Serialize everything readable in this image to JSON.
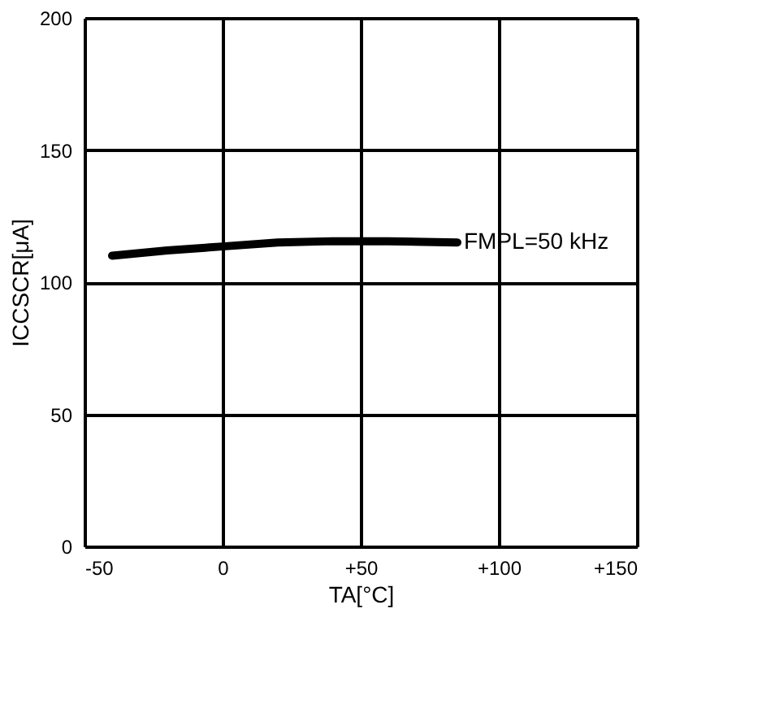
{
  "chart_data": {
    "type": "line",
    "xlabel": "TA[°C]",
    "ylabel": "ICCSCR[μA]",
    "x": [
      -40,
      -20,
      0,
      20,
      40,
      60,
      85
    ],
    "series": [
      {
        "color": "#000000",
        "values": [
          110,
          112,
          113.5,
          115,
          115.5,
          115.5,
          115
        ]
      }
    ],
    "xlim": [
      -50,
      150
    ],
    "xticks": [
      -50,
      0,
      {
        "value": 50,
        "label": "+50"
      },
      {
        "value": 100,
        "label": "+100"
      },
      {
        "value": 150,
        "label": "+150"
      }
    ],
    "ylim": [
      0,
      200
    ],
    "yticks": [
      0,
      50,
      100,
      150,
      200
    ],
    "grid": true,
    "marker": "none",
    "line_style": "solid",
    "annotations": [
      {
        "text": "FMPL=50 kHz",
        "x": 85,
        "y": 115
      }
    ]
  }
}
